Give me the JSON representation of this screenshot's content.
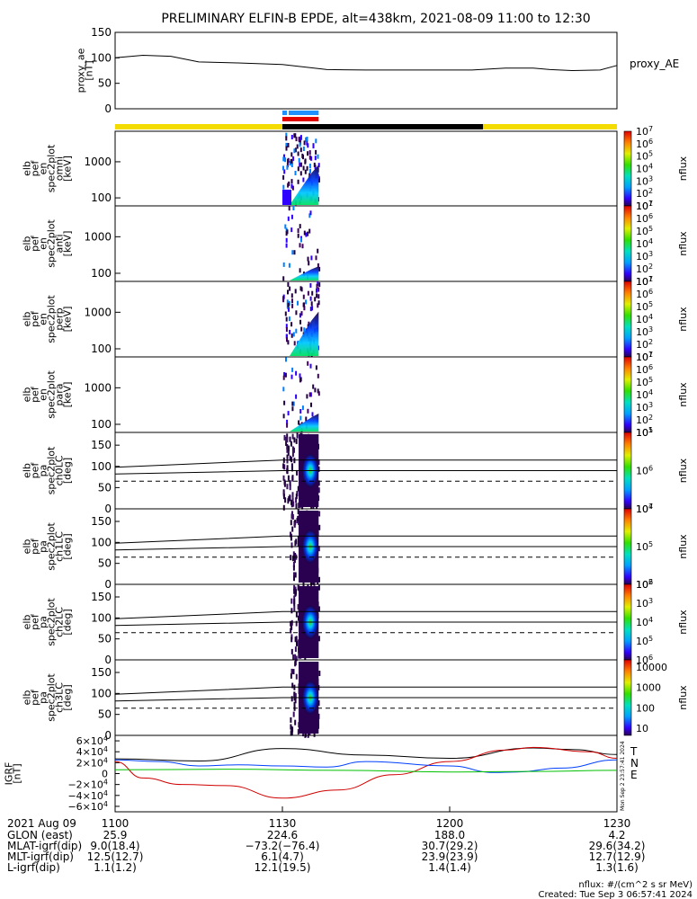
{
  "title": "PRELIMINARY ELFIN-B EPDE, alt=438km, 2021-08-09 11:00 to 12:30",
  "chart_data": [
    {
      "type": "line",
      "panel": "proxy_ae",
      "ylabel": [
        "proxy_ae",
        "[nT]"
      ],
      "legend": "proxy_AE",
      "ylim": [
        0,
        150
      ],
      "yticks": [
        "150",
        "100",
        "50",
        "0"
      ],
      "yticks_values": [
        150,
        100,
        50,
        0
      ],
      "x_minutes": [
        0,
        5,
        10,
        15,
        22,
        30,
        38,
        45,
        52,
        58,
        62,
        64,
        70,
        75,
        78,
        82,
        87,
        90
      ],
      "values": [
        100,
        105,
        103,
        92,
        90,
        87,
        77,
        76,
        76,
        76,
        76,
        76,
        80,
        80,
        77,
        75,
        76,
        85
      ]
    },
    {
      "type": "table",
      "panel": "coverage bars",
      "segments": [
        {
          "label": "yellow",
          "color": "#f4dc00",
          "from_min": 0,
          "to_min": 30
        },
        {
          "label": "black",
          "color": "#000000",
          "from_min": 30,
          "to_min": 66
        },
        {
          "label": "yellow",
          "color": "#f4dc00",
          "from_min": 66,
          "to_min": 90
        }
      ],
      "science_bars": [
        {
          "color": "#1e90ff",
          "from_min": 30,
          "to_min": 36.5
        },
        {
          "color": "#e00000",
          "from_min": 30,
          "to_min": 36.5
        }
      ]
    },
    {
      "type": "heatmap",
      "panel": "en_spec2plot_omni",
      "ylabel": [
        "elb",
        "pef",
        "en",
        "spec2plot",
        "omni",
        "[keV]"
      ],
      "yscale": "log",
      "ylim": [
        60,
        7000
      ],
      "yticks": [
        "1000",
        "100"
      ],
      "yticks_values": [
        1000,
        100
      ],
      "cbar_label": "nflux",
      "cbar_ticks": [
        "10",
        "10",
        "10",
        "10",
        "10",
        "10",
        "10"
      ],
      "cbar_exp": [
        "1",
        "2",
        "3",
        "4",
        "5",
        "6",
        "7"
      ],
      "active_from_min": 30,
      "active_to_min": 36.5
    },
    {
      "type": "heatmap",
      "panel": "en_spec2plot_anti",
      "ylabel": [
        "elb",
        "pef",
        "en",
        "spec2plot",
        "anti",
        "[keV]"
      ],
      "yscale": "log",
      "ylim": [
        60,
        7000
      ],
      "yticks": [
        "1000",
        "100"
      ],
      "yticks_values": [
        1000,
        100
      ],
      "cbar_label": "nflux",
      "cbar_ticks": [
        "10",
        "10",
        "10",
        "10",
        "10",
        "10",
        "10"
      ],
      "cbar_exp": [
        "1",
        "2",
        "3",
        "4",
        "5",
        "6",
        "7"
      ],
      "active_from_min": 30,
      "active_to_min": 36.5
    },
    {
      "type": "heatmap",
      "panel": "en_spec2plot_perp",
      "ylabel": [
        "elb",
        "pef",
        "en",
        "spec2plot",
        "perp",
        "[keV]"
      ],
      "yscale": "log",
      "ylim": [
        60,
        7000
      ],
      "yticks": [
        "1000",
        "100"
      ],
      "yticks_values": [
        1000,
        100
      ],
      "cbar_label": "nflux",
      "cbar_ticks": [
        "10",
        "10",
        "10",
        "10",
        "10",
        "10",
        "10"
      ],
      "cbar_exp": [
        "1",
        "2",
        "3",
        "4",
        "5",
        "6",
        "7"
      ],
      "active_from_min": 30,
      "active_to_min": 36.5
    },
    {
      "type": "heatmap",
      "panel": "en_spec2plot_para",
      "ylabel": [
        "elb",
        "pef",
        "en",
        "spec2plot",
        "para",
        "[keV]"
      ],
      "yscale": "log",
      "ylim": [
        60,
        7000
      ],
      "yticks": [
        "1000",
        "100"
      ],
      "yticks_values": [
        1000,
        100
      ],
      "cbar_label": "nflux",
      "cbar_ticks": [
        "10",
        "10",
        "10",
        "10",
        "10",
        "10",
        "10"
      ],
      "cbar_exp": [
        "1",
        "2",
        "3",
        "4",
        "5",
        "6",
        "7"
      ],
      "active_from_min": 30,
      "active_to_min": 36.5
    },
    {
      "type": "heatmap",
      "panel": "pa_spec2plot_ch0LC",
      "ylabel": [
        "elb",
        "pef",
        "pa",
        "spec2plot",
        "ch0LC",
        "[deg]"
      ],
      "ylim": [
        0,
        180
      ],
      "yticks": [
        "150",
        "100",
        "50",
        "0"
      ],
      "yticks_values": [
        150,
        100,
        50,
        0
      ],
      "lc_lines": {
        "upper": [
          [
            0,
            98
          ],
          [
            30,
            115
          ],
          [
            90,
            115
          ]
        ],
        "lower": [
          [
            0,
            82
          ],
          [
            30,
            90
          ],
          [
            90,
            90
          ]
        ],
        "dashed": [
          [
            0,
            65
          ],
          [
            90,
            65
          ]
        ]
      },
      "cbar_label": "nflux",
      "cbar_ticks": [
        "10",
        "10",
        "10"
      ],
      "cbar_exp": [
        "7",
        "6",
        "5"
      ],
      "active_from_min": 30,
      "active_to_min": 36.5
    },
    {
      "type": "heatmap",
      "panel": "pa_spec2plot_ch1LC",
      "ylabel": [
        "elb",
        "pef",
        "pa",
        "spec2plot",
        "ch1LC",
        "[deg]"
      ],
      "ylim": [
        0,
        180
      ],
      "yticks": [
        "150",
        "100",
        "50",
        "0"
      ],
      "yticks_values": [
        150,
        100,
        50,
        0
      ],
      "lc_lines": {
        "upper": [
          [
            0,
            98
          ],
          [
            30,
            115
          ],
          [
            90,
            115
          ]
        ],
        "lower": [
          [
            0,
            82
          ],
          [
            30,
            90
          ],
          [
            90,
            90
          ]
        ],
        "dashed": [
          [
            0,
            65
          ],
          [
            90,
            65
          ]
        ]
      },
      "cbar_label": "nflux",
      "cbar_ticks": [
        "10",
        "10",
        "10"
      ],
      "cbar_exp": [
        "6",
        "5",
        "4"
      ],
      "active_from_min": 30,
      "active_to_min": 36.5
    },
    {
      "type": "heatmap",
      "panel": "pa_spec2plot_ch2LC",
      "ylabel": [
        "elb",
        "pef",
        "pa",
        "spec2plot",
        "ch2LC",
        "[deg]"
      ],
      "ylim": [
        0,
        180
      ],
      "yticks": [
        "150",
        "100",
        "50",
        "0"
      ],
      "yticks_values": [
        150,
        100,
        50,
        0
      ],
      "lc_lines": {
        "upper": [
          [
            0,
            98
          ],
          [
            30,
            115
          ],
          [
            90,
            115
          ]
        ],
        "lower": [
          [
            0,
            82
          ],
          [
            30,
            90
          ],
          [
            90,
            90
          ]
        ],
        "dashed": [
          [
            0,
            65
          ],
          [
            90,
            65
          ]
        ]
      },
      "cbar_label": "nflux",
      "cbar_ticks": [
        "10",
        "10",
        "10",
        "10",
        "10"
      ],
      "cbar_exp": [
        "6",
        "5",
        "4",
        "3",
        "2"
      ],
      "active_from_min": 30,
      "active_to_min": 36.5
    },
    {
      "type": "heatmap",
      "panel": "pa_spec2plot_ch3LC",
      "ylabel": [
        "elb",
        "pef",
        "pa",
        "spec2plot",
        "ch3LC",
        "[deg]"
      ],
      "ylim": [
        0,
        180
      ],
      "yticks": [
        "150",
        "100",
        "50",
        "0"
      ],
      "yticks_values": [
        150,
        100,
        50,
        0
      ],
      "lc_lines": {
        "upper": [
          [
            0,
            98
          ],
          [
            30,
            115
          ],
          [
            90,
            115
          ]
        ],
        "lower": [
          [
            0,
            82
          ],
          [
            30,
            90
          ],
          [
            90,
            90
          ]
        ],
        "dashed": [
          [
            0,
            65
          ],
          [
            90,
            65
          ]
        ]
      },
      "cbar_label": "nflux",
      "cbar_ticks": [
        "10000",
        "1000",
        "100",
        "10"
      ],
      "active_from_min": 30,
      "active_to_min": 36.5
    },
    {
      "type": "line",
      "panel": "igrf",
      "ylabel": [
        "IGRF",
        "[nT]"
      ],
      "ylim": [
        -70000,
        70000
      ],
      "yticks": [
        {
          "m": "6",
          "e": "4",
          "v": 60000
        },
        {
          "m": "4",
          "e": "4",
          "v": 40000
        },
        {
          "m": "2",
          "e": "4",
          "v": 20000
        },
        {
          "m": "0",
          "e": "",
          "v": 0
        },
        {
          "m": "−2",
          "e": "4",
          "v": -20000
        },
        {
          "m": "−4",
          "e": "4",
          "v": -40000
        },
        {
          "m": "−6",
          "e": "4",
          "v": -60000
        }
      ],
      "series": [
        {
          "name": "T",
          "color": "#000000",
          "x": [
            0,
            15,
            30,
            45,
            60,
            75,
            82,
            90
          ],
          "values": [
            27000,
            23000,
            46000,
            34000,
            28000,
            47000,
            44000,
            35000
          ]
        },
        {
          "name": "N",
          "color": "#d00000",
          "x": [
            0,
            5,
            12,
            20,
            30,
            40,
            50,
            60,
            70,
            75,
            85,
            90
          ],
          "values": [
            22000,
            -8000,
            -20000,
            -22000,
            -45000,
            -30000,
            -2000,
            22000,
            43000,
            48000,
            40000,
            28000
          ]
        },
        {
          "name": "E",
          "color": "#0040ff",
          "x": [
            0,
            8,
            15,
            22,
            30,
            38,
            45,
            60,
            68,
            72,
            80,
            90
          ],
          "values": [
            25000,
            22000,
            14000,
            16000,
            14000,
            12000,
            22000,
            14000,
            2000,
            3000,
            10000,
            25000
          ]
        },
        {
          "name": "green",
          "color": "#00c000",
          "x": [
            0,
            20,
            40,
            60,
            75,
            90
          ],
          "values": [
            7000,
            8000,
            6000,
            3000,
            4000,
            6000
          ]
        }
      ],
      "side_labels": [
        "T",
        "N",
        "E"
      ],
      "side_colors": [
        "#000000",
        "#d00000",
        "#00c000"
      ],
      "stamp": "Mon Sep  2 23:57:41 2024"
    }
  ],
  "xaxis": {
    "start": "2021 Aug 09",
    "ticks": [
      "1100",
      "1130",
      "1200",
      "1230"
    ],
    "tick_minutes": [
      0,
      30,
      60,
      90
    ],
    "rows": [
      {
        "label": "GLON (east)",
        "values": [
          "25.9",
          "224.6",
          "188.0",
          "4.2"
        ]
      },
      {
        "label": "MLAT-igrf(dip)",
        "values": [
          "9.0(18.4)",
          "−73.2(−76.4)",
          "30.7(29.2)",
          "29.6(34.2)"
        ]
      },
      {
        "label": "MLT-igrf(dip)",
        "values": [
          "12.5(12.7)",
          "6.1(4.7)",
          "23.9(23.9)",
          "12.7(12.9)"
        ]
      },
      {
        "label": "L-igrf(dip)",
        "values": [
          "1.1(1.2)",
          "12.1(19.5)",
          "1.4(1.4)",
          "1.3(1.6)"
        ]
      }
    ]
  },
  "footer": {
    "units": "nflux: #/(cm^2 s sr MeV)",
    "created": "Created: Tue Sep  3 06:57:41 2024"
  }
}
